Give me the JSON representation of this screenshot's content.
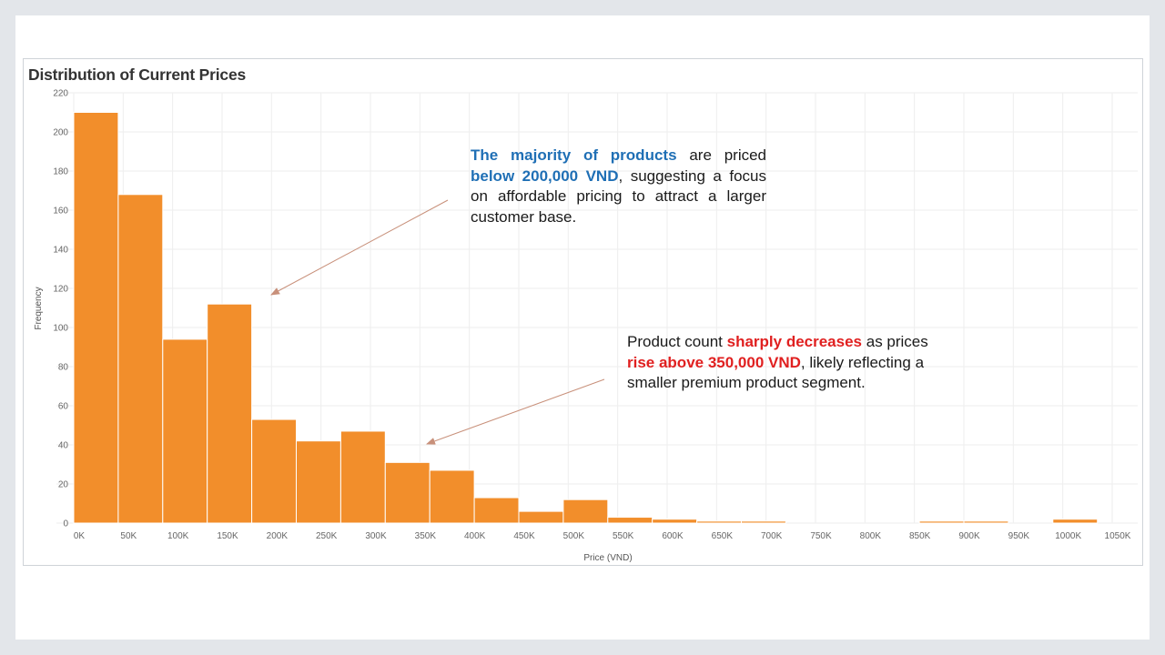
{
  "chart_data": {
    "type": "bar",
    "title": "Distribution of Current Prices",
    "xlabel": "Price (VND)",
    "ylabel": "Frequency",
    "ylim": [
      0,
      220
    ],
    "yticks": [
      0,
      20,
      40,
      60,
      80,
      100,
      120,
      140,
      160,
      180,
      200,
      220
    ],
    "xlim": [
      0,
      1050
    ],
    "xtick_labels": [
      "0K",
      "50K",
      "100K",
      "150K",
      "200K",
      "250K",
      "300K",
      "350K",
      "400K",
      "450K",
      "500K",
      "550K",
      "600K",
      "650K",
      "700K",
      "750K",
      "800K",
      "850K",
      "900K",
      "950K",
      "1000K",
      "1050K"
    ],
    "bin_width": 45,
    "bins": [
      {
        "start": 0,
        "value": 210
      },
      {
        "start": 45,
        "value": 168
      },
      {
        "start": 90,
        "value": 94
      },
      {
        "start": 135,
        "value": 112
      },
      {
        "start": 180,
        "value": 53
      },
      {
        "start": 225,
        "value": 42
      },
      {
        "start": 270,
        "value": 47
      },
      {
        "start": 315,
        "value": 31
      },
      {
        "start": 360,
        "value": 27
      },
      {
        "start": 405,
        "value": 13
      },
      {
        "start": 450,
        "value": 6
      },
      {
        "start": 495,
        "value": 12
      },
      {
        "start": 540,
        "value": 3
      },
      {
        "start": 585,
        "value": 2
      },
      {
        "start": 630,
        "value": 1
      },
      {
        "start": 675,
        "value": 1
      },
      {
        "start": 720,
        "value": 0
      },
      {
        "start": 765,
        "value": 0
      },
      {
        "start": 810,
        "value": 0
      },
      {
        "start": 855,
        "value": 1
      },
      {
        "start": 900,
        "value": 1
      },
      {
        "start": 945,
        "value": 0
      },
      {
        "start": 990,
        "value": 2
      }
    ],
    "bar_color": "#f28e2b",
    "grid": true
  },
  "annotations": [
    {
      "id": "note-1",
      "segments": [
        {
          "text": "The majority of products",
          "style": "blue"
        },
        {
          "text": " are priced ",
          "style": "plain"
        },
        {
          "text": "below 200,000 VND",
          "style": "blue"
        },
        {
          "text": ", suggesting a focus on affordable pricing to attract a larger customer base.",
          "style": "plain"
        }
      ]
    },
    {
      "id": "note-2",
      "segments": [
        {
          "text": "Product count ",
          "style": "plain"
        },
        {
          "text": "sharply decreases",
          "style": "red"
        },
        {
          "text": " as prices ",
          "style": "plain"
        },
        {
          "text": "rise above 350,000 VND",
          "style": "red"
        },
        {
          "text": ", likely reflecting a smaller premium product segment.",
          "style": "plain"
        }
      ]
    }
  ],
  "colors": {
    "highlight_blue": "#1f6fb5",
    "highlight_red": "#e02020",
    "arrow": "#c8907a",
    "grid": "#eeeeee"
  }
}
